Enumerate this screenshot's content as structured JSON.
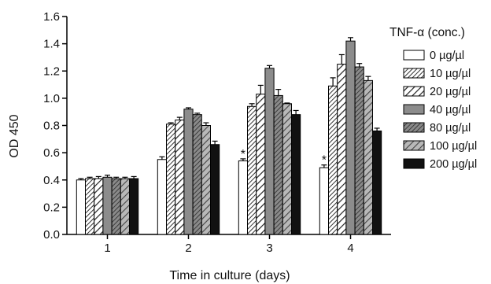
{
  "chart_data": {
    "type": "bar",
    "xlabel": "Time in culture (days)",
    "ylabel": "OD 450",
    "ylim": [
      0,
      1.6
    ],
    "yticks": [
      "0.0",
      "0.2",
      "0.4",
      "0.6",
      "0.8",
      "1.0",
      "1.2",
      "1.4",
      "1.6"
    ],
    "categories": [
      "1",
      "2",
      "3",
      "4"
    ],
    "legend_title": "TNF-α (conc.)",
    "legend_position": "right",
    "series": [
      {
        "name": "0 µg/µl",
        "fill": "white",
        "values": [
          0.4,
          0.55,
          0.54,
          0.49
        ],
        "errors": [
          0.01,
          0.02,
          0.015,
          0.02
        ]
      },
      {
        "name": "10 µg/µl",
        "fill": "hatch-dense",
        "values": [
          0.41,
          0.81,
          0.94,
          1.09
        ],
        "errors": [
          0.01,
          0.01,
          0.02,
          0.06
        ]
      },
      {
        "name": "20 µg/µl",
        "fill": "hatch-sparse",
        "values": [
          0.41,
          0.84,
          1.03,
          1.25
        ],
        "errors": [
          0.015,
          0.02,
          0.065,
          0.07
        ]
      },
      {
        "name": "40 µg/µl",
        "fill": "gray",
        "values": [
          0.42,
          0.92,
          1.22,
          1.42
        ],
        "errors": [
          0.015,
          0.01,
          0.02,
          0.025
        ]
      },
      {
        "name": "80 µg/µl",
        "fill": "hatch-gray",
        "values": [
          0.41,
          0.88,
          1.02,
          1.23
        ],
        "errors": [
          0.01,
          0.01,
          0.045,
          0.025
        ]
      },
      {
        "name": "100 µg/µl",
        "fill": "hatch-gray-sparse",
        "values": [
          0.41,
          0.8,
          0.96,
          1.13
        ],
        "errors": [
          0.01,
          0.02,
          0.005,
          0.03
        ]
      },
      {
        "name": "200 µg/µl",
        "fill": "black",
        "values": [
          0.41,
          0.66,
          0.88,
          0.76
        ],
        "errors": [
          0.015,
          0.025,
          0.03,
          0.02
        ]
      }
    ],
    "annotations": [
      {
        "text": "*",
        "category": "3",
        "series": "0 µg/µl"
      },
      {
        "text": "*",
        "category": "4",
        "series": "0 µg/µl"
      }
    ]
  }
}
